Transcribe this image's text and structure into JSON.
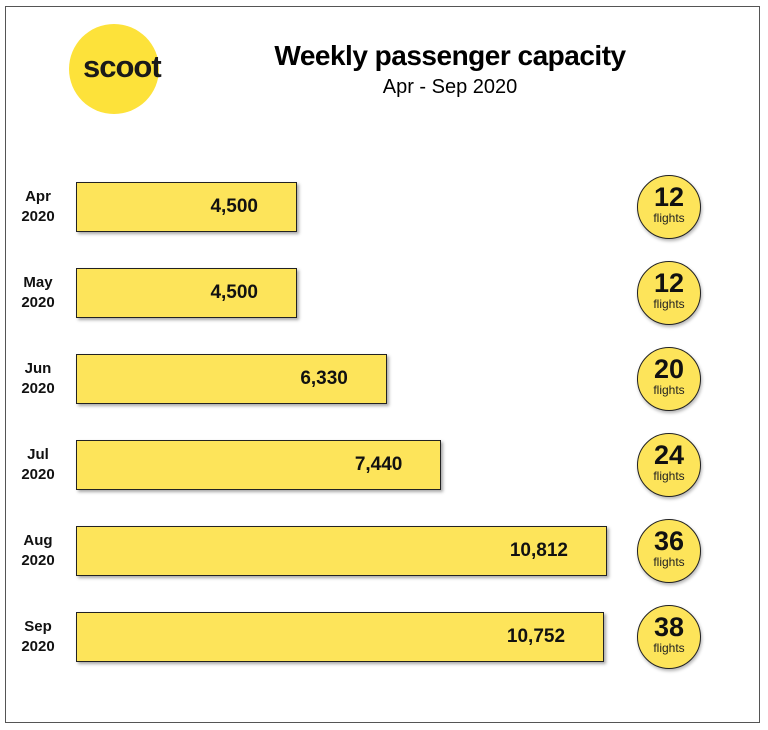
{
  "logo_text": "scoot",
  "chart_data": {
    "type": "bar",
    "orientation": "horizontal",
    "title": "Weekly passenger capacity",
    "subtitle": "Apr - Sep 2020",
    "categories": [
      [
        "Apr",
        "2020"
      ],
      [
        "May",
        "2020"
      ],
      [
        "Jun",
        "2020"
      ],
      [
        "Jul",
        "2020"
      ],
      [
        "Aug",
        "2020"
      ],
      [
        "Sep",
        "2020"
      ]
    ],
    "values": [
      4500,
      4500,
      6330,
      7440,
      10812,
      10752
    ],
    "value_labels": [
      "4,500",
      "4,500",
      "6,330",
      "7,440",
      "10,812",
      "10,752"
    ],
    "flights": [
      12,
      12,
      20,
      24,
      36,
      38
    ],
    "flights_unit": "flights",
    "grid": false,
    "colors": {
      "bar": "#fde45a",
      "logo": "#fde23a",
      "outline": "#222222"
    }
  }
}
